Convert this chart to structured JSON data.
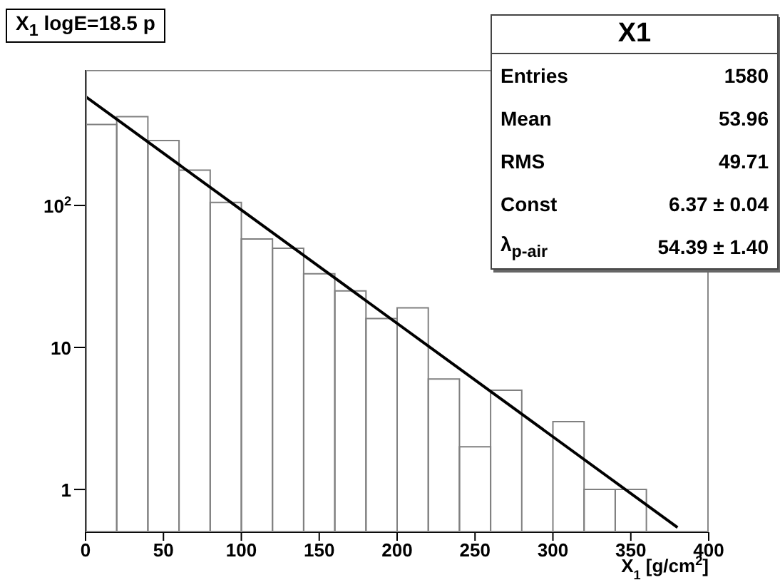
{
  "chart_data": {
    "type": "histogram",
    "title": "X$_{1}$ logE=18.5 p",
    "xlabel": "X$_{1}$ [g/cm$^{2}$]",
    "log": "y",
    "grid": false,
    "legend": false,
    "xlim": [
      0,
      400
    ],
    "xticks": [
      0,
      50,
      100,
      150,
      200,
      250,
      300,
      350,
      400
    ],
    "ylim": [
      0.5,
      900
    ],
    "yticks": [
      1,
      10,
      {
        "value": 100,
        "label": "10$^{2}$"
      }
    ],
    "series": [
      {
        "color": "#808080",
        "bins": [
          0,
          20,
          40,
          60,
          80,
          100,
          120,
          140,
          160,
          180,
          200,
          220,
          240,
          260,
          280,
          300,
          320,
          340,
          360
        ],
        "values": [
          372,
          422,
          286,
          177,
          105,
          58,
          50,
          33,
          25,
          16,
          19,
          6,
          2,
          5,
          null,
          3,
          1,
          1
        ]
      },
      {
        "type": "line",
        "color": "#000000",
        "x": [
          0,
          380
        ],
        "values": [
          584,
          0.54
        ]
      }
    ],
    "annotations": [
      "X1",
      "Entries",
      "1580",
      "Mean",
      "53.96",
      "RMS",
      "49.71",
      "Const",
      "6.37 ± 0.04",
      "λ$_{p-air}$",
      "54.39 ± 1.40"
    ]
  }
}
